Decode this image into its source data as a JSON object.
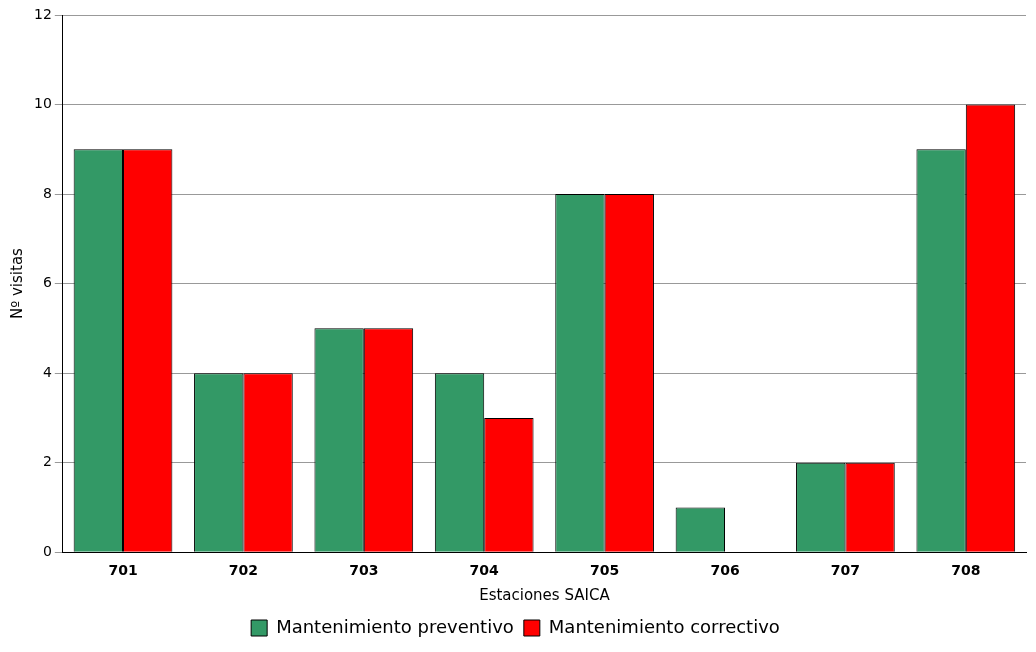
{
  "chart_data": {
    "type": "bar",
    "xlabel": "Estaciones SAICA",
    "ylabel": "Nº visitas",
    "categories": [
      "701",
      "702",
      "703",
      "704",
      "705",
      "706",
      "707",
      "708"
    ],
    "series": [
      {
        "name": "Mantenimiento preventivo",
        "color": "#339966",
        "values": [
          9,
          4,
          5,
          4,
          8,
          1,
          2,
          9
        ]
      },
      {
        "name": "Mantenimiento correctivo",
        "color": "#ff0000",
        "values": [
          9,
          4,
          5,
          3,
          8,
          0,
          2,
          10
        ]
      }
    ],
    "ylim": [
      0,
      12
    ],
    "yticks": [
      0,
      2,
      4,
      6,
      8,
      10,
      12
    ],
    "grid": "y",
    "legend": "bottom"
  }
}
